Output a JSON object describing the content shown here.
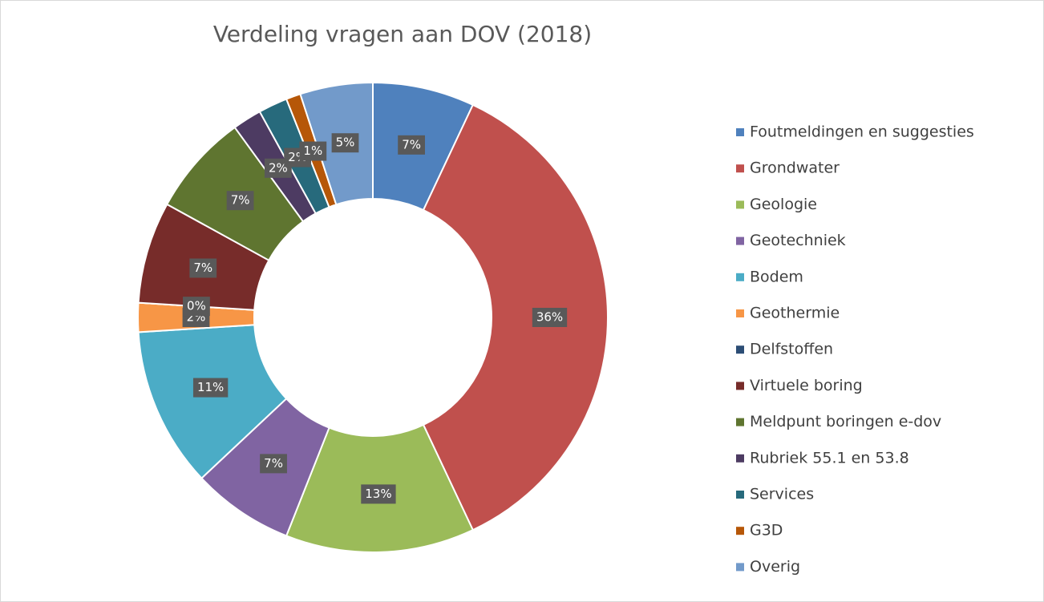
{
  "chart_data": {
    "type": "donut",
    "title": "Verdeling vragen aan DOV (2018)",
    "categories": [
      "Foutmeldingen en suggesties",
      "Grondwater",
      "Geologie",
      "Geotechniek",
      "Bodem",
      "Geothermie",
      "Delfstoffen",
      "Virtuele boring",
      "Meldpunt boringen e-dov",
      "Rubriek 55.1 en 53.8",
      "Services",
      "G3D",
      "Overig"
    ],
    "values": [
      7,
      36,
      13,
      7,
      11,
      2,
      0,
      7,
      7,
      2,
      2,
      1,
      5
    ],
    "value_labels": [
      "7%",
      "36%",
      "13%",
      "7%",
      "11%",
      "2%",
      "0%",
      "7%",
      "7%",
      "2%",
      "2%",
      "1%",
      "5%"
    ],
    "colors": [
      "#4f81bd",
      "#c0504d",
      "#9bbb59",
      "#8064a2",
      "#4bacc6",
      "#f79646",
      "#2c4d75",
      "#772c2a",
      "#5f7530",
      "#4d3b62",
      "#276a7c",
      "#b65708",
      "#729aca"
    ],
    "legend": "right"
  }
}
